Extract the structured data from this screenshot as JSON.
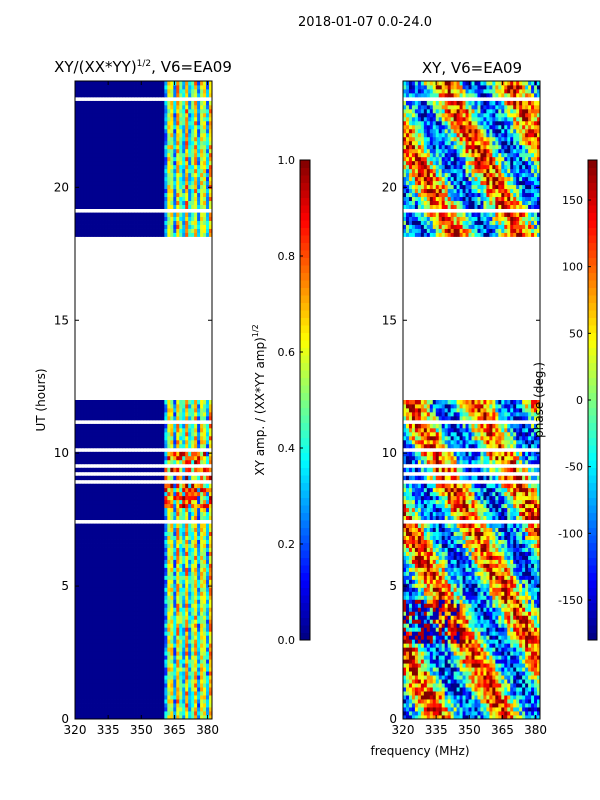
{
  "figure": {
    "suptitle": "2018-01-07 0.0-24.0",
    "shared_xlabel": "frequency (MHz)"
  },
  "colors": {
    "jet": [
      "#00007f",
      "#0000ff",
      "#007fff",
      "#00ffff",
      "#7fff7f",
      "#ffff00",
      "#ff7f00",
      "#ff0000",
      "#7f0000"
    ],
    "low_amp": "#00008f",
    "gap": "#ffffff"
  },
  "chart_data": [
    {
      "type": "heatmap",
      "title_base": "XY/(XX*YY)",
      "title_sup": "1/2",
      "title_rest": ", V6=EA09",
      "xlabel": "",
      "ylabel": "UT (hours)",
      "xlim": [
        320,
        382
      ],
      "ylim": [
        0,
        24
      ],
      "xticks": [
        320,
        335,
        350,
        365,
        380
      ],
      "yticks": [
        0,
        5,
        10,
        15,
        20
      ],
      "no_data_hours": [
        12.0,
        18.1
      ],
      "signal_band_mhz": [
        360,
        382
      ],
      "colorbar": {
        "label_base": "XY amp. / (XX*YY amp)",
        "label_sup": "1/2",
        "range": [
          0.0,
          1.0
        ],
        "ticks": [
          "0.0",
          "0.2",
          "0.4",
          "0.6",
          "0.8",
          "1.0"
        ]
      }
    },
    {
      "type": "heatmap",
      "title": "XY, V6=EA09",
      "xlabel": "",
      "ylabel": "",
      "xlim": [
        320,
        382
      ],
      "ylim": [
        0,
        24
      ],
      "xticks": [
        320,
        335,
        350,
        365,
        380
      ],
      "yticks": [
        0,
        5,
        10,
        15,
        20
      ],
      "no_data_hours": [
        12.0,
        18.1
      ],
      "colorbar": {
        "label": "phase (deg.)",
        "range": [
          -180,
          180
        ],
        "ticks": [
          "-150",
          "-100",
          "-50",
          "0",
          "50",
          "100",
          "150"
        ]
      }
    }
  ]
}
